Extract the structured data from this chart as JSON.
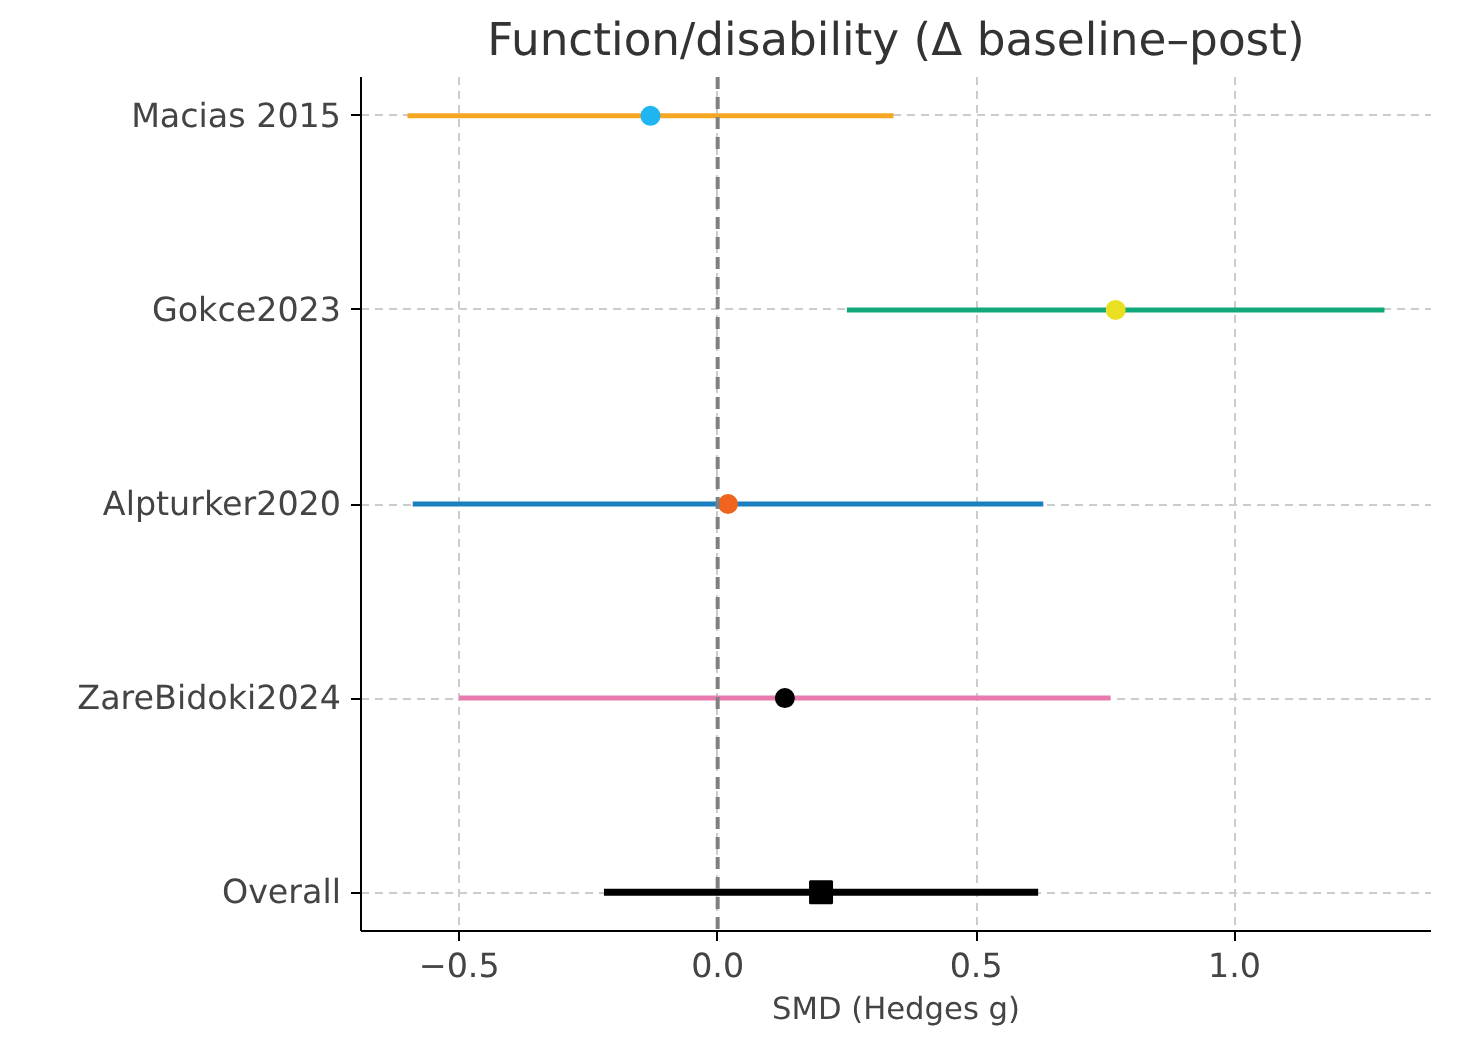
{
  "chart_data": {
    "type": "scatter",
    "title": "Function/disability (Δ baseline–post)",
    "xlabel": "SMD (Hedges g)",
    "orientation": "horizontal",
    "categories": [
      "Macias 2015",
      "Gokce2023",
      "Alpturker2020",
      "ZareBidoki2024",
      "Overall"
    ],
    "series": [
      {
        "color": "#f5a623",
        "colors": [
          "#1fb5f0",
          null,
          null,
          null,
          null
        ],
        "marker": "circle",
        "values": [
          -0.13,
          null,
          null,
          null,
          null
        ],
        "errors": [
          [
            -0.6,
            0.34
          ],
          null,
          null,
          null,
          null
        ]
      },
      {
        "color": "#10a878",
        "colors": [
          null,
          "#e8e020",
          null,
          null,
          null
        ],
        "marker": "circle",
        "values": [
          null,
          0.77,
          null,
          null,
          null
        ],
        "errors": [
          null,
          [
            0.25,
            1.29
          ],
          null,
          null,
          null
        ]
      },
      {
        "color": "#1a7fc0",
        "colors": [
          null,
          null,
          "#f0641e",
          null,
          null
        ],
        "marker": "circle",
        "values": [
          null,
          null,
          0.02,
          null,
          null
        ],
        "errors": [
          null,
          null,
          [
            -0.59,
            0.63
          ],
          null,
          null
        ]
      },
      {
        "color": "#e87ab0",
        "colors": [
          null,
          null,
          null,
          "#000000",
          null
        ],
        "marker": "circle",
        "values": [
          null,
          null,
          null,
          0.13,
          null
        ],
        "errors": [
          null,
          null,
          null,
          [
            -0.5,
            0.76
          ],
          null
        ]
      },
      {
        "color": "#000000",
        "colors": [
          null,
          null,
          null,
          null,
          "#000000"
        ],
        "marker": "square",
        "values": [
          null,
          null,
          null,
          null,
          0.2
        ],
        "errors": [
          null,
          null,
          null,
          null,
          [
            -0.22,
            0.62
          ]
        ]
      }
    ],
    "xlim": [
      -0.69,
      1.38
    ],
    "xticks": [
      {
        "value": -0.5,
        "label": "−0.5"
      },
      {
        "value": 0,
        "label": "0.0"
      },
      {
        "value": 0.5,
        "label": "0.5"
      },
      {
        "value": 1,
        "label": "1.0"
      }
    ],
    "ref_lines": [
      {
        "axis": "x",
        "value": 0,
        "label": null,
        "color": "#808080",
        "line_style": "dashed"
      }
    ],
    "grid": true
  }
}
